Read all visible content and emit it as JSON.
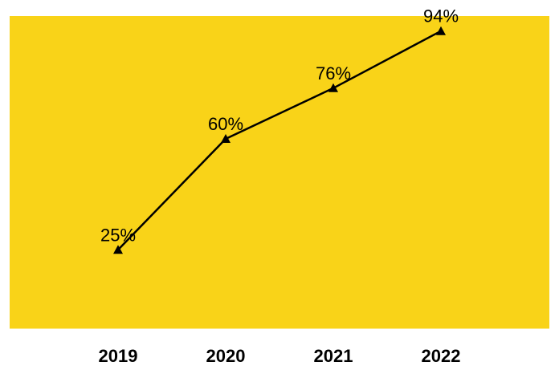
{
  "chart_data": {
    "type": "line",
    "categories": [
      "2019",
      "2020",
      "2021",
      "2022"
    ],
    "series": [
      {
        "values": [
          25,
          60,
          76,
          94
        ],
        "data_labels": [
          "25%",
          "60%",
          "76%",
          "94%"
        ],
        "marker": "triangle",
        "color": "#000000"
      }
    ],
    "ylim": [
      0,
      100
    ],
    "grid": false,
    "legend": "none",
    "plot_background": "#F9D318",
    "page_background": "#FFFFFF"
  }
}
